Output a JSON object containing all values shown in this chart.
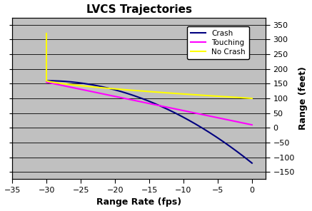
{
  "title": "LVCS Trajectories",
  "xlabel": "Range Rate (fps)",
  "ylabel": "Range (feet)",
  "xlim": [
    -35,
    2
  ],
  "ylim": [
    -175,
    375
  ],
  "xticks": [
    -35,
    -30,
    -25,
    -20,
    -15,
    -10,
    -5,
    0
  ],
  "yticks": [
    -150,
    -100,
    -50,
    0,
    50,
    100,
    150,
    200,
    250,
    300,
    350
  ],
  "background_color": "#c0c0c0",
  "figure_background": "#ffffff",
  "grid_color": "#000000",
  "crash_color": "#00007f",
  "touching_color": "#ff00ff",
  "no_crash_color": "#ffff00",
  "legend_labels": [
    "Crash",
    "Touching",
    "No Crash"
  ],
  "title_fontsize": 11,
  "axis_label_fontsize": 9,
  "tick_fontsize": 8
}
